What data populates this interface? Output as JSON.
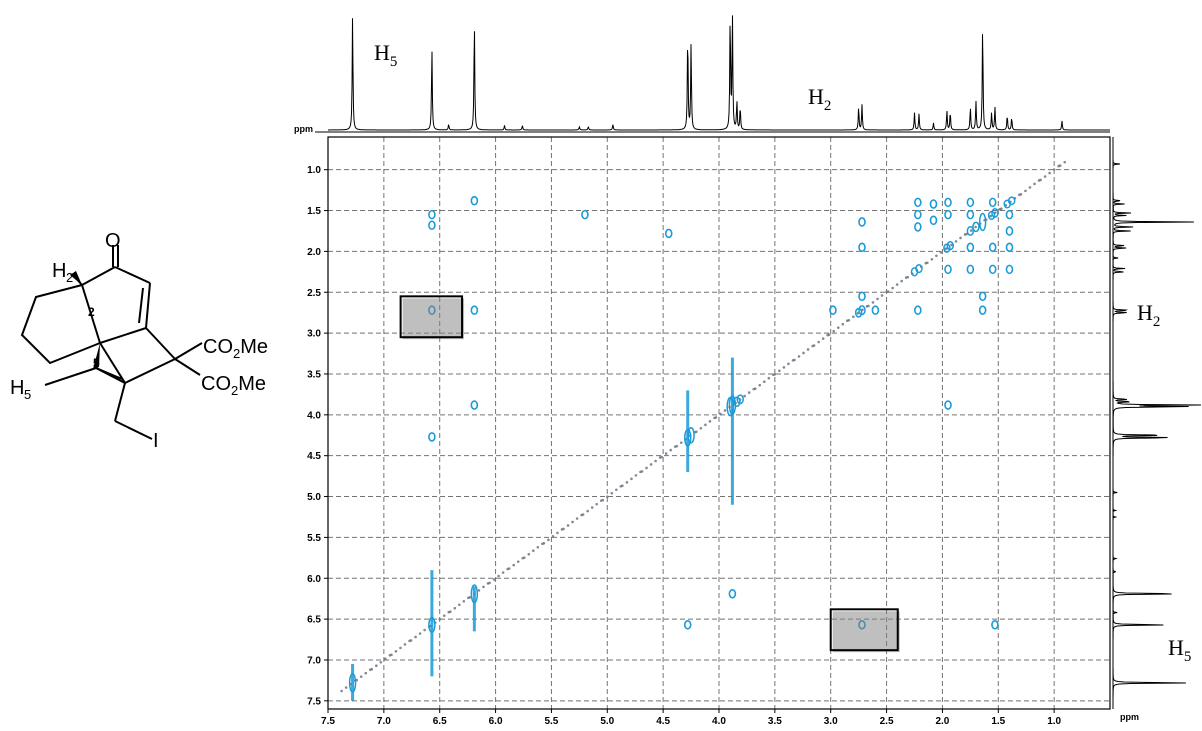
{
  "molecule": {
    "oxygen": "O",
    "h2_label": "H",
    "h2_sub": "2",
    "h5_label": "H",
    "h5_sub": "5",
    "pos2": "2",
    "pos5": "5",
    "ester1": "CO",
    "ester1_sub": "2",
    "ester1_end": "Me",
    "ester2": "CO",
    "ester2_sub": "2",
    "ester2_end": "Me",
    "iodine": "I"
  },
  "annotations": {
    "top_h5": "H",
    "top_h5_sub": "5",
    "top_h2": "H",
    "top_h2_sub": "2",
    "right_h2": "H",
    "right_h2_sub": "2",
    "right_h5": "H",
    "right_h5_sub": "5"
  },
  "chart_data": {
    "type": "heatmap",
    "subtype": "2D COSY NMR spectrum",
    "x_axis": {
      "unit_label": "ppm",
      "range": [
        7.5,
        0.5
      ],
      "reversed": true,
      "ticks": [
        "7.5",
        "7.0",
        "6.5",
        "6.0",
        "5.5",
        "5.0",
        "4.5",
        "4.0",
        "3.5",
        "3.0",
        "2.5",
        "2.0",
        "1.5",
        "1.0"
      ]
    },
    "y_axis": {
      "unit_label": "ppm",
      "range": [
        0.6,
        7.6
      ],
      "reversed": true,
      "ticks": [
        "1.0",
        "1.5",
        "2.0",
        "2.5",
        "3.0",
        "3.5",
        "4.0",
        "4.5",
        "5.0",
        "5.5",
        "6.0",
        "6.5",
        "7.0",
        "7.5"
      ]
    },
    "top_axis_label": "ppm",
    "grid": true,
    "projection_peaks": [
      {
        "ppm": 7.28,
        "intensity": 1.0
      },
      {
        "ppm": 6.57,
        "intensity": 0.72
      },
      {
        "ppm": 6.42,
        "intensity": 0.05
      },
      {
        "ppm": 6.19,
        "intensity": 0.96
      },
      {
        "ppm": 5.92,
        "intensity": 0.04
      },
      {
        "ppm": 5.76,
        "intensity": 0.04
      },
      {
        "ppm": 5.25,
        "intensity": 0.03
      },
      {
        "ppm": 5.17,
        "intensity": 0.03
      },
      {
        "ppm": 4.95,
        "intensity": 0.05
      },
      {
        "ppm": 4.28,
        "intensity": 0.85
      },
      {
        "ppm": 4.25,
        "intensity": 0.75
      },
      {
        "ppm": 3.9,
        "intensity": 1.0
      },
      {
        "ppm": 3.88,
        "intensity": 1.0
      },
      {
        "ppm": 3.84,
        "intensity": 0.25
      },
      {
        "ppm": 3.81,
        "intensity": 0.2
      },
      {
        "ppm": 2.75,
        "intensity": 0.2
      },
      {
        "ppm": 2.72,
        "intensity": 0.22
      },
      {
        "ppm": 2.25,
        "intensity": 0.15
      },
      {
        "ppm": 2.21,
        "intensity": 0.14
      },
      {
        "ppm": 2.08,
        "intensity": 0.06
      },
      {
        "ppm": 1.96,
        "intensity": 0.17
      },
      {
        "ppm": 1.93,
        "intensity": 0.16
      },
      {
        "ppm": 1.75,
        "intensity": 0.2
      },
      {
        "ppm": 1.7,
        "intensity": 0.25
      },
      {
        "ppm": 1.64,
        "intensity": 0.92
      },
      {
        "ppm": 1.56,
        "intensity": 0.15
      },
      {
        "ppm": 1.53,
        "intensity": 0.2
      },
      {
        "ppm": 1.42,
        "intensity": 0.13
      },
      {
        "ppm": 1.38,
        "intensity": 0.11
      },
      {
        "ppm": 0.93,
        "intensity": 0.08
      }
    ],
    "cross_peaks": [
      {
        "x": 6.57,
        "y": 1.55
      },
      {
        "x": 6.57,
        "y": 1.68
      },
      {
        "x": 6.57,
        "y": 2.72
      },
      {
        "x": 6.57,
        "y": 4.27
      },
      {
        "x": 6.19,
        "y": 1.38
      },
      {
        "x": 6.19,
        "y": 2.72
      },
      {
        "x": 6.19,
        "y": 3.88
      },
      {
        "x": 5.2,
        "y": 1.55
      },
      {
        "x": 4.45,
        "y": 1.78
      },
      {
        "x": 4.28,
        "y": 6.57
      },
      {
        "x": 3.88,
        "y": 6.19
      },
      {
        "x": 2.72,
        "y": 1.64
      },
      {
        "x": 2.72,
        "y": 1.95
      },
      {
        "x": 2.72,
        "y": 2.55
      },
      {
        "x": 2.72,
        "y": 6.57
      },
      {
        "x": 2.98,
        "y": 2.72
      },
      {
        "x": 2.6,
        "y": 2.72
      },
      {
        "x": 1.53,
        "y": 6.57
      },
      {
        "x": 1.95,
        "y": 3.88
      },
      {
        "x": 2.22,
        "y": 1.4
      },
      {
        "x": 2.22,
        "y": 1.55
      },
      {
        "x": 2.22,
        "y": 1.7
      },
      {
        "x": 2.22,
        "y": 2.72
      },
      {
        "x": 1.95,
        "y": 1.4
      },
      {
        "x": 1.95,
        "y": 1.55
      },
      {
        "x": 1.95,
        "y": 2.22
      },
      {
        "x": 1.75,
        "y": 1.4
      },
      {
        "x": 1.75,
        "y": 1.55
      },
      {
        "x": 1.75,
        "y": 1.95
      },
      {
        "x": 1.75,
        "y": 2.22
      },
      {
        "x": 1.55,
        "y": 1.4
      },
      {
        "x": 1.55,
        "y": 1.95
      },
      {
        "x": 1.55,
        "y": 2.22
      },
      {
        "x": 1.4,
        "y": 1.55
      },
      {
        "x": 1.4,
        "y": 1.75
      },
      {
        "x": 1.4,
        "y": 1.95
      },
      {
        "x": 1.4,
        "y": 2.22
      },
      {
        "x": 1.64,
        "y": 2.72
      },
      {
        "x": 1.64,
        "y": 2.55
      },
      {
        "x": 2.08,
        "y": 1.42
      },
      {
        "x": 2.08,
        "y": 1.62
      }
    ],
    "highlight_boxes": [
      {
        "x_ppm": [
          6.85,
          6.3
        ],
        "y_ppm": [
          2.55,
          3.05
        ],
        "label": "H5-H2"
      },
      {
        "x_ppm": [
          3.0,
          2.4
        ],
        "y_ppm": [
          6.38,
          6.88
        ],
        "label": "H2-H5"
      }
    ],
    "colors": {
      "contour": "#1a9bd8",
      "diagonal": "#6d7682",
      "grid": "#3a3a3a",
      "trace": "#000000"
    }
  }
}
